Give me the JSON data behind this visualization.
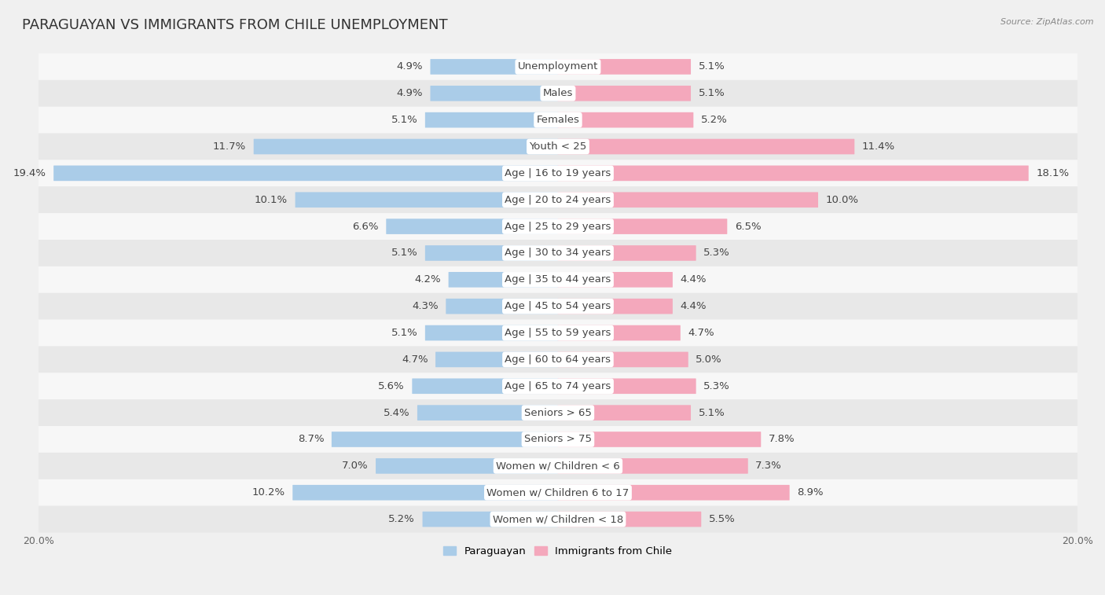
{
  "title": "PARAGUAYAN VS IMMIGRANTS FROM CHILE UNEMPLOYMENT",
  "source": "Source: ZipAtlas.com",
  "categories": [
    "Unemployment",
    "Males",
    "Females",
    "Youth < 25",
    "Age | 16 to 19 years",
    "Age | 20 to 24 years",
    "Age | 25 to 29 years",
    "Age | 30 to 34 years",
    "Age | 35 to 44 years",
    "Age | 45 to 54 years",
    "Age | 55 to 59 years",
    "Age | 60 to 64 years",
    "Age | 65 to 74 years",
    "Seniors > 65",
    "Seniors > 75",
    "Women w/ Children < 6",
    "Women w/ Children 6 to 17",
    "Women w/ Children < 18"
  ],
  "paraguayan": [
    4.9,
    4.9,
    5.1,
    11.7,
    19.4,
    10.1,
    6.6,
    5.1,
    4.2,
    4.3,
    5.1,
    4.7,
    5.6,
    5.4,
    8.7,
    7.0,
    10.2,
    5.2
  ],
  "immigrants_chile": [
    5.1,
    5.1,
    5.2,
    11.4,
    18.1,
    10.0,
    6.5,
    5.3,
    4.4,
    4.4,
    4.7,
    5.0,
    5.3,
    5.1,
    7.8,
    7.3,
    8.9,
    5.5
  ],
  "paraguayan_color": "#aacce8",
  "immigrants_color": "#f4a8bc",
  "bar_height": 0.55,
  "max_val": 20.0,
  "background_color": "#f0f0f0",
  "row_light": "#f7f7f7",
  "row_dark": "#e8e8e8",
  "title_fontsize": 13,
  "label_fontsize": 9.5,
  "value_fontsize": 9.5,
  "tick_fontsize": 9,
  "legend_labels": [
    "Paraguayan",
    "Immigrants from Chile"
  ],
  "center_label_color": "#444444",
  "value_label_color": "#444444"
}
